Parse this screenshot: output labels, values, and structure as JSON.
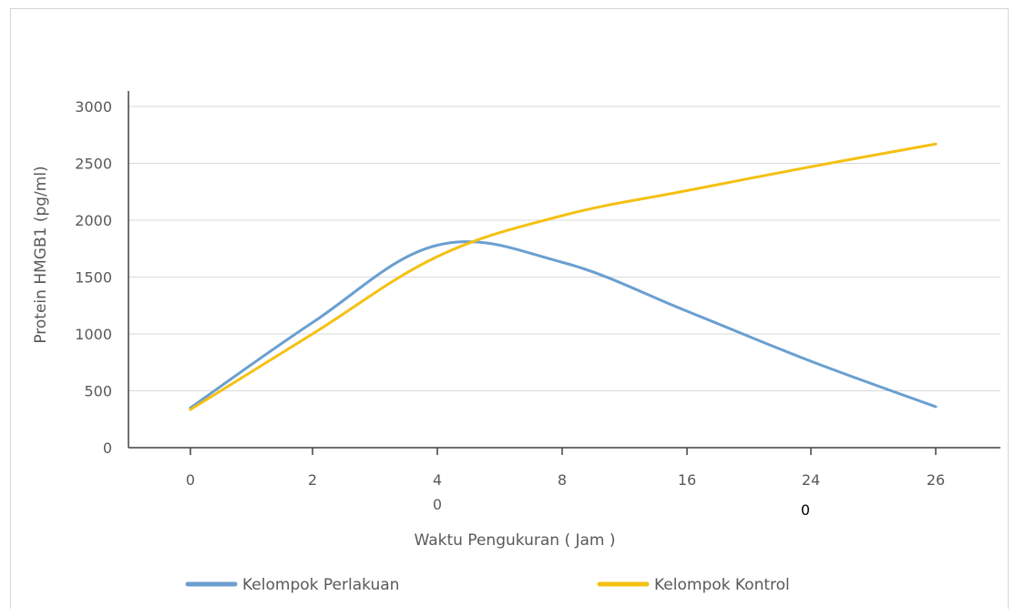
{
  "chart_data": {
    "type": "line",
    "title": "",
    "xlabel": "Waktu Pengukuran ( Jam )",
    "ylabel": "Protein HMGB1 (pg/ml)",
    "categories": [
      "0",
      "2",
      "4",
      "8",
      "16",
      "24",
      "26"
    ],
    "extra_x_labels": [
      {
        "category": "4",
        "text": "0",
        "color": "#595959"
      },
      {
        "category": "24",
        "text": "0",
        "color": "#000000"
      }
    ],
    "ylim": [
      0,
      3000
    ],
    "yticks": [
      0,
      500,
      1000,
      1500,
      2000,
      2500,
      3000
    ],
    "grid": true,
    "legend_position": "bottom",
    "series": [
      {
        "name": "Kelompok Perlakuan",
        "color": "#6a9fd0",
        "values": [
          350,
          1100,
          1780,
          1630,
          1200,
          760,
          360
        ]
      },
      {
        "name": "Kelompok Kontrol",
        "color": "#f5c012",
        "values": [
          335,
          1000,
          1680,
          2040,
          2260,
          2470,
          2670
        ]
      }
    ]
  }
}
